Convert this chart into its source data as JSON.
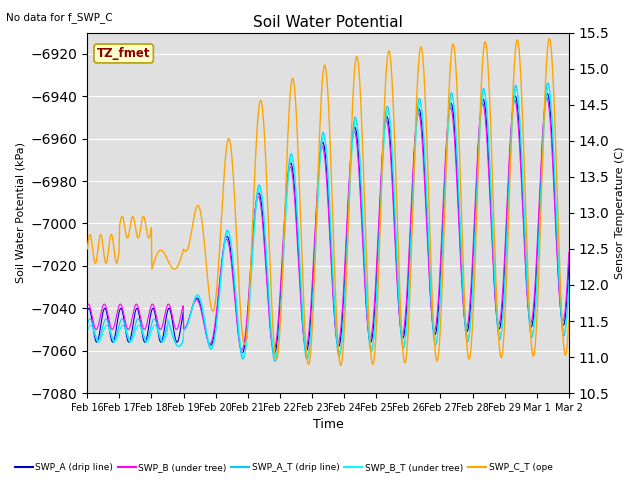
{
  "title": "Soil Water Potential",
  "subtitle": "No data for f_SWP_C",
  "ylabel_left": "Soil Water Potential (kPa)",
  "ylabel_right": "Sensor Temperature (C)",
  "xlabel": "Time",
  "ylim_left": [
    -7080,
    -6910
  ],
  "ylim_right": [
    10.5,
    15.5
  ],
  "yticks_left": [
    -7080,
    -7060,
    -7040,
    -7020,
    -7000,
    -6980,
    -6960,
    -6940,
    -6920
  ],
  "yticks_right": [
    10.5,
    11.0,
    11.5,
    12.0,
    12.5,
    13.0,
    13.5,
    14.0,
    14.5,
    15.0,
    15.5
  ],
  "tz_label": "TZ_fmet",
  "colors": {
    "swp_a": "#0000cc",
    "swp_b": "#ff00ff",
    "swp_at": "#00ccff",
    "swp_bt": "#00ffff",
    "swp_ct": "#ffa500"
  },
  "legend_labels": [
    "SWP_A (drip line)",
    "SWP_B (under tree)",
    "SWP_A_T (drip line)",
    "SWP_B_T (under tree)",
    "SWP_C_T (ope"
  ],
  "background_color": "#e0e0e0",
  "grid_color": "#ffffff",
  "n_points": 1000,
  "n_days": 15
}
